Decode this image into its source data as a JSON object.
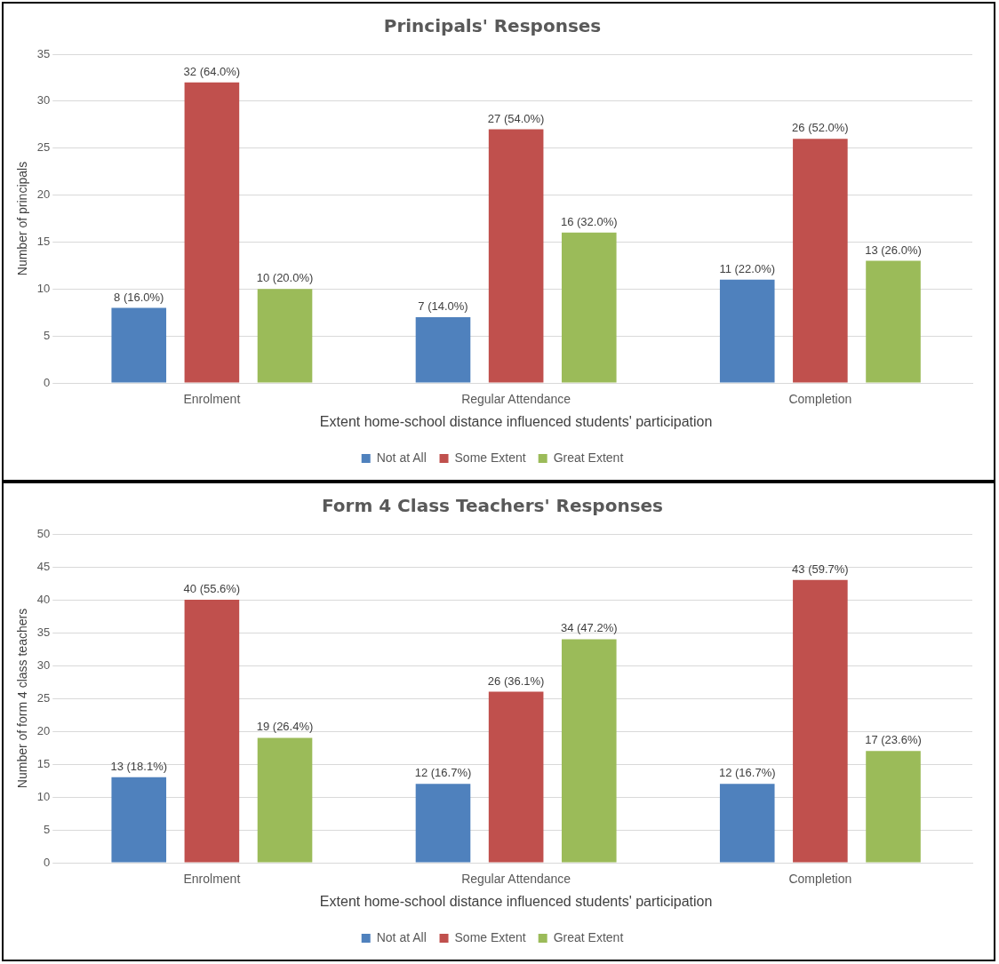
{
  "chart_data": [
    {
      "type": "bar",
      "title": "Principals' Responses",
      "xlabel": "Extent home-school distance influenced students' participation",
      "ylabel": "Number of principals",
      "categories": [
        "Enrolment",
        "Regular Attendance",
        "Completion"
      ],
      "series": [
        {
          "name": "Not at All",
          "color": "#4f81bd",
          "values": [
            8,
            7,
            11
          ],
          "value_labels": [
            "8 (16.0%)",
            "7 (14.0%)",
            "11 (22.0%)"
          ]
        },
        {
          "name": "Some Extent",
          "color": "#c0504d",
          "values": [
            32,
            27,
            26
          ],
          "value_labels": [
            "32 (64.0%)",
            "27 (54.0%)",
            "26 (52.0%)"
          ]
        },
        {
          "name": "Great Extent",
          "color": "#9bbb59",
          "values": [
            10,
            16,
            13
          ],
          "value_labels": [
            "10 (20.0%)",
            "16 (32.0%)",
            "13 (26.0%)"
          ]
        }
      ],
      "ylim": [
        0,
        35
      ],
      "yticks": [
        0,
        5,
        10,
        15,
        20,
        25,
        30,
        35
      ],
      "grid": "y",
      "legend": "bottom"
    },
    {
      "type": "bar",
      "title": "Form 4 Class Teachers' Responses",
      "xlabel": "Extent home-school distance influenced students' participation",
      "ylabel": "Number of form 4 class teachers",
      "categories": [
        "Enrolment",
        "Regular Attendance",
        "Completion"
      ],
      "series": [
        {
          "name": "Not at All",
          "color": "#4f81bd",
          "values": [
            13,
            12,
            12
          ],
          "value_labels": [
            "13 (18.1%)",
            "12 (16.7%)",
            "12 (16.7%)"
          ]
        },
        {
          "name": "Some Extent",
          "color": "#c0504d",
          "values": [
            40,
            26,
            43
          ],
          "value_labels": [
            "40 (55.6%)",
            "26 (36.1%)",
            "43 (59.7%)"
          ]
        },
        {
          "name": "Great Extent",
          "color": "#9bbb59",
          "values": [
            19,
            34,
            17
          ],
          "value_labels": [
            "19 (26.4%)",
            "34 (47.2%)",
            "17 (23.6%)"
          ]
        }
      ],
      "ylim": [
        0,
        50
      ],
      "yticks": [
        0,
        5,
        10,
        15,
        20,
        25,
        30,
        35,
        40,
        45,
        50
      ],
      "grid": "y",
      "legend": "bottom"
    }
  ]
}
